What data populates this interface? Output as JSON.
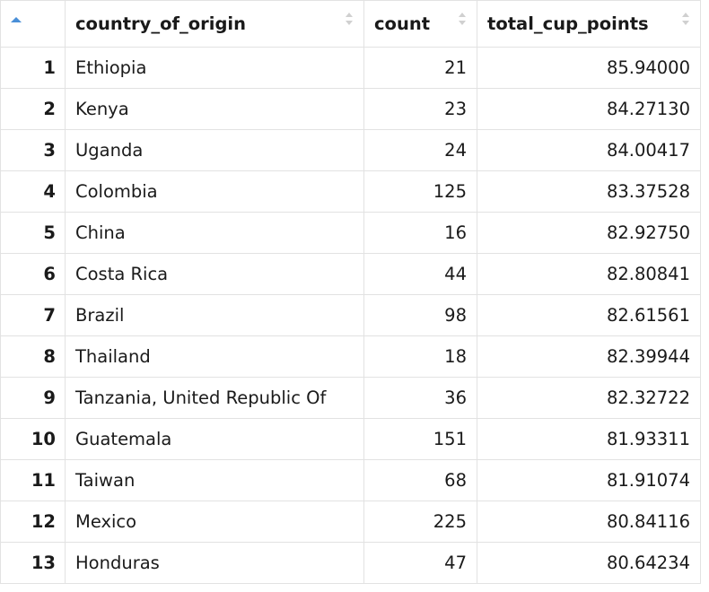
{
  "table": {
    "columns": [
      {
        "label": "",
        "sort": "ascending"
      },
      {
        "label": "country_of_origin",
        "sort": "none"
      },
      {
        "label": "count",
        "sort": "none"
      },
      {
        "label": "total_cup_points",
        "sort": "none"
      }
    ],
    "rows": [
      {
        "index": "1",
        "country": "Ethiopia",
        "count": "21",
        "points": "85.94000"
      },
      {
        "index": "2",
        "country": "Kenya",
        "count": "23",
        "points": "84.27130"
      },
      {
        "index": "3",
        "country": "Uganda",
        "count": "24",
        "points": "84.00417"
      },
      {
        "index": "4",
        "country": "Colombia",
        "count": "125",
        "points": "83.37528"
      },
      {
        "index": "5",
        "country": "China",
        "count": "16",
        "points": "82.92750"
      },
      {
        "index": "6",
        "country": "Costa Rica",
        "count": "44",
        "points": "82.80841"
      },
      {
        "index": "7",
        "country": "Brazil",
        "count": "98",
        "points": "82.61561"
      },
      {
        "index": "8",
        "country": "Thailand",
        "count": "18",
        "points": "82.39944"
      },
      {
        "index": "9",
        "country": "Tanzania, United Republic Of",
        "count": "36",
        "points": "82.32722"
      },
      {
        "index": "10",
        "country": "Guatemala",
        "count": "151",
        "points": "81.93311"
      },
      {
        "index": "11",
        "country": "Taiwan",
        "count": "68",
        "points": "81.91074"
      },
      {
        "index": "12",
        "country": "Mexico",
        "count": "225",
        "points": "80.84116"
      },
      {
        "index": "13",
        "country": "Honduras",
        "count": "47",
        "points": "80.64234"
      }
    ]
  },
  "colors": {
    "border": "#e2e2e2",
    "active_sort": "#4a8fd8",
    "inactive_sort": "#d0d0d0"
  }
}
